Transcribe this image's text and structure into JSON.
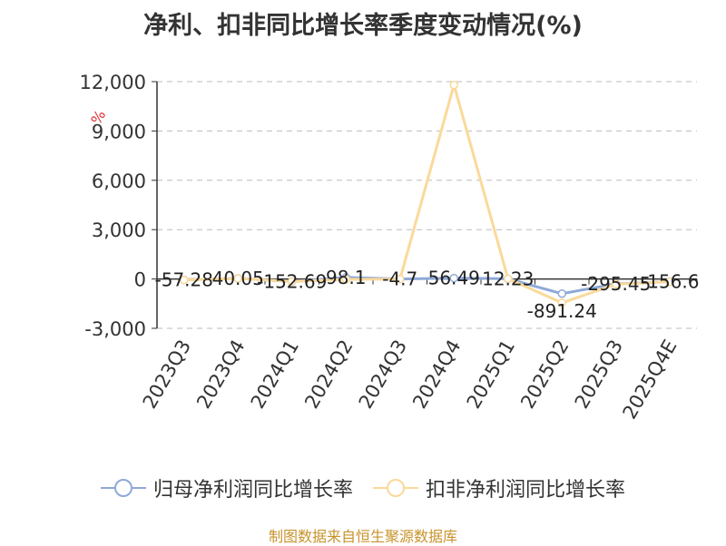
{
  "title": "净利、扣非同比增长率季度变动情况(%)",
  "source": "制图数据来自恒生聚源数据库",
  "colors": {
    "series1": "#8fa9d9",
    "series2": "#fad99a",
    "grid": "#bbbbbb",
    "axis": "#333333",
    "unit": "#e03030"
  },
  "chart_data": {
    "type": "line",
    "title": "净利、扣非同比增长率季度变动情况(%)",
    "unit_label": "%",
    "categories": [
      "2023Q3",
      "2023Q4",
      "2024Q1",
      "2024Q2",
      "2024Q3",
      "2024Q4",
      "2025Q1",
      "2025Q2",
      "2025Q3",
      "2025Q4E"
    ],
    "ylim": [
      -3000,
      12000
    ],
    "yticks": [
      12000,
      9000,
      6000,
      3000,
      0,
      -3000
    ],
    "ytick_labels": [
      "12,000",
      "9,000",
      "6,000",
      "3,000",
      "0",
      "-3,000"
    ],
    "grid": true,
    "legend_position": "bottom",
    "series": [
      {
        "name": "归母净利润同比增长率",
        "values": [
          -57.28,
          40.05,
          -152.69,
          98.1,
          -4.7,
          56.49,
          12.23,
          -891.24,
          -295.45,
          -156.6
        ],
        "labels": [
          "-57.28",
          "40.05",
          "-152.69",
          "98.1",
          "-4.7",
          "56.49",
          "12.23",
          "-891.24",
          "-295.45",
          "-156.6"
        ]
      },
      {
        "name": "扣非净利润同比增长率",
        "values": [
          -60,
          30,
          -150,
          -20,
          -10,
          11800,
          20,
          -1450,
          -320,
          -160
        ]
      }
    ]
  }
}
